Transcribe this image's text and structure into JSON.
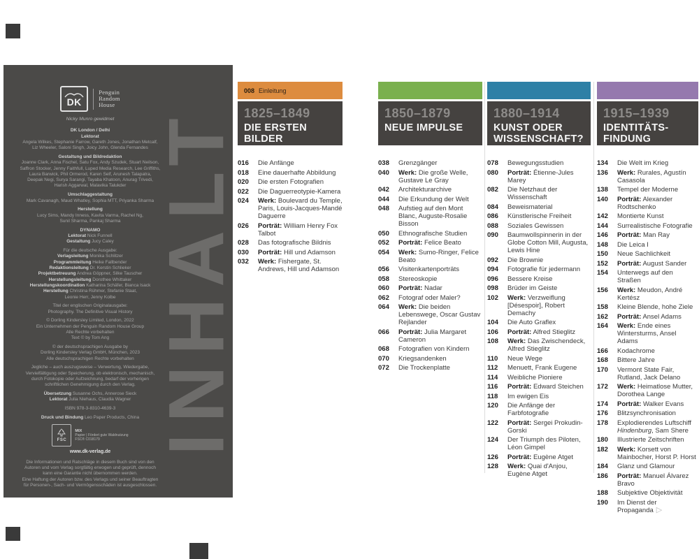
{
  "left_page": {
    "inhalt": "INHALT",
    "dk_logo": "DK",
    "publisher": [
      "Penguin",
      "Random",
      "House"
    ],
    "dedication": "Nicky Munro gewidmet",
    "fsc": {
      "label": "FSC",
      "mix": "MIX",
      "desc": "Papier | Fördert gute Waldnutzung",
      "code": "FSC® C018179"
    },
    "website": "www.dk-verlag.de",
    "blocks": [
      {
        "lines": [
          [
            {
              "b": "DK London / Delhi"
            }
          ],
          [
            {
              "b": "Lektorat"
            }
          ],
          [
            {
              "t": "Angela Wilkes, Stephanie Farrow, Gareth Jones, Jonathan Metcalf,"
            }
          ],
          [
            {
              "t": "Liz Wheeler, Saloni Singh, Joicy John, Glenda Fernandes"
            }
          ]
        ]
      },
      {
        "lines": [
          [
            {
              "b": "Gestaltung und Bildredaktion"
            }
          ],
          [
            {
              "t": "Joanne Clark, Anna Fischel, Satu Fox, Andy Szudek, Stuart Neilson,"
            }
          ],
          [
            {
              "t": "Saffron Stocker, Jenny Faithfull, Luped Media Research, Lee Griffiths,"
            }
          ],
          [
            {
              "t": "Laura Barwick, Phil Ormerod, Karen Self, Arunesh Talapatra,"
            }
          ],
          [
            {
              "t": "Deepak Negi, Surya Sarangi, Tayaba Khatoon, Anurag Trivedi,"
            }
          ],
          [
            {
              "t": "Harish Aggarwal, Malavika Talukder"
            }
          ]
        ]
      },
      {
        "lines": [
          [
            {
              "b": "Umschlaggestaltung"
            }
          ],
          [
            {
              "t": "Mark Cavanagh, Maud Whatley, Sophia MTT, Priyanka Sharma"
            }
          ]
        ]
      },
      {
        "lines": [
          [
            {
              "b": "Herstellung"
            }
          ],
          [
            {
              "t": "Lucy Sims, Mandy Inness, Kavita Varma, Rachel Ng,"
            }
          ],
          [
            {
              "t": "Sunil Sharma, Pankaj Sharma"
            }
          ]
        ]
      },
      {
        "lines": [
          [
            {
              "b": "DYNAMO"
            }
          ],
          [
            {
              "b": "Lektorat"
            },
            {
              "t": " Nick Funnell"
            }
          ],
          [
            {
              "b": "Gestaltung"
            },
            {
              "t": " Jucy Caley"
            }
          ]
        ]
      },
      {
        "lines": [
          [
            {
              "t": "Für die deutsche Ausgabe:"
            }
          ],
          [
            {
              "b": "Verlagsleitung"
            },
            {
              "t": " Monika Schlitzer"
            }
          ],
          [
            {
              "b": "Programmleitung"
            },
            {
              "t": " Heike Fallbender"
            }
          ],
          [
            {
              "b": "Redaktionsleitung"
            },
            {
              "t": " Dr. Kerstin Schlieker"
            }
          ],
          [
            {
              "b": "Projektbetreuung"
            },
            {
              "t": " Andrea Göppner, Silke Tauscher"
            }
          ],
          [
            {
              "b": "Herstellungsleitung"
            },
            {
              "t": " Dorothee Whittaker"
            }
          ],
          [
            {
              "b": "Herstellungskoordination"
            },
            {
              "t": " Katharina Schäfer, Bianca Isack"
            }
          ],
          [
            {
              "b": "Herstellung"
            },
            {
              "t": " Christina Rühmer, Stefanie Staat,"
            }
          ],
          [
            {
              "t": "Leonie Herr, Jenny Kolbe"
            }
          ]
        ]
      },
      {
        "lines": [
          [
            {
              "t": "Titel der englischen Originalausgabe:"
            }
          ],
          [
            {
              "t": "Photography. The Definitive Visual History"
            }
          ]
        ]
      },
      {
        "lines": [
          [
            {
              "t": "© Dorling Kindersley Limited, London, 2022"
            }
          ],
          [
            {
              "t": "Ein Unternehmen der Penguin Random House Group"
            }
          ],
          [
            {
              "t": "Alle Rechte vorbehalten"
            }
          ],
          [
            {
              "t": "Text © by Tom Ang"
            }
          ]
        ]
      },
      {
        "lines": [
          [
            {
              "t": "© der deutschsprachigen Ausgabe by"
            }
          ],
          [
            {
              "t": "Dorling Kindersley Verlag GmbH, München, 2023"
            }
          ],
          [
            {
              "t": "Alle deutschsprachigen Rechte vorbehalten"
            }
          ]
        ]
      },
      {
        "lines": [
          [
            {
              "t": "Jegliche – auch auszugsweise – Verwertung, Wiedergabe,"
            }
          ],
          [
            {
              "t": "Vervielfältigung oder Speicherung, ob elektronisch, mechanisch,"
            }
          ],
          [
            {
              "t": "durch Fotokopie oder Aufzeichnung, bedarf der vorherigen"
            }
          ],
          [
            {
              "t": "schriftlichen Genehmigung durch den Verlag."
            }
          ]
        ]
      },
      {
        "lines": [
          [
            {
              "b": "Übersetzung"
            },
            {
              "t": " Susanne Ochs, Annerose Sieck"
            }
          ],
          [
            {
              "b": "Lektorat"
            },
            {
              "t": " Julia Niehaus, Claudia Wagner"
            }
          ]
        ]
      },
      {
        "lines": [
          [
            {
              "t": "ISBN 978-3-8310-4639-3"
            }
          ]
        ]
      },
      {
        "lines": [
          [
            {
              "b": "Druck und Bindung"
            },
            {
              "t": " Leo Paper Products, China"
            }
          ]
        ]
      },
      {
        "type": "fsc"
      },
      {
        "type": "website"
      },
      {
        "lines": [
          [
            {
              "t": "Die Informationen und Ratschläge in diesem Buch sind von den"
            }
          ],
          [
            {
              "t": "Autoren und vom Verlag sorgfältig erwogen und geprüft, dennoch"
            }
          ],
          [
            {
              "t": "kann eine Garantie nicht übernommen werden."
            }
          ],
          [
            {
              "t": "Eine Haftung der Autoren bzw. des Verlags und seiner Beauftragten"
            }
          ],
          [
            {
              "t": "für Personen-, Sach- und Vermögensschäden ist ausgeschlossen."
            }
          ]
        ]
      }
    ]
  },
  "columns": [
    {
      "color": "#dd8c3f",
      "tab": {
        "number": "008",
        "label": "Einleitung"
      },
      "years": "1825–1849",
      "title_lines": [
        "DIE ERSTEN",
        "BILDER"
      ],
      "entries": [
        {
          "p": "016",
          "t": "Die Anfänge"
        },
        {
          "p": "018",
          "t": "Eine dauerhafte Abbildung"
        },
        {
          "p": "020",
          "t": "Die ersten Fotografien"
        },
        {
          "p": "022",
          "t": "Die Daguerreotypie-Kamera"
        },
        {
          "p": "024",
          "b": "Werk:",
          "t": "Boulevard du Temple, Paris, Louis-Jacques-Mandé Daguerre"
        },
        {
          "p": "026",
          "b": "Porträt:",
          "t": "William Henry Fox Talbot"
        },
        {
          "p": "028",
          "t": "Das fotografische Bildnis"
        },
        {
          "p": "030",
          "b": "Porträt:",
          "t": "Hill und Adamson"
        },
        {
          "p": "032",
          "b": "Werk:",
          "t": "Fishergate, St. Andrews, Hill und Adamson"
        }
      ]
    },
    {
      "color": "#7ab04e",
      "tab": null,
      "years": "1850–1879",
      "title_lines": [
        "NEUE IMPULSE"
      ],
      "entries": [
        {
          "p": "038",
          "t": "Grenzgänger"
        },
        {
          "p": "040",
          "b": "Werk:",
          "t": "Die große Welle, Gustave Le Gray"
        },
        {
          "p": "042",
          "t": "Architekturarchive"
        },
        {
          "p": "044",
          "t": "Die Erkundung der Welt"
        },
        {
          "p": "048",
          "t": "Aufstieg auf den Mont Blanc, Auguste-Rosalie Bisson"
        },
        {
          "p": "050",
          "t": "Ethnografische Studien"
        },
        {
          "p": "052",
          "b": "Porträt:",
          "t": "Felice Beato"
        },
        {
          "p": "054",
          "b": "Werk:",
          "t": "Sumo-Ringer, Felice Beato"
        },
        {
          "p": "056",
          "t": "Visitenkartenporträts"
        },
        {
          "p": "058",
          "t": "Stereoskopie"
        },
        {
          "p": "060",
          "b": "Porträt:",
          "t": "Nadar"
        },
        {
          "p": "062",
          "t": "Fotograf oder Maler?"
        },
        {
          "p": "064",
          "b": "Werk:",
          "t": "Die beiden Lebenswege, Oscar Gustav Rejlander"
        },
        {
          "p": "066",
          "b": "Porträt:",
          "t": "Julia Margaret Cameron"
        },
        {
          "p": "068",
          "t": "Fotografien von Kindern"
        },
        {
          "p": "070",
          "t": "Kriegsandenken"
        },
        {
          "p": "072",
          "t": "Die Trockenplatte"
        }
      ]
    },
    {
      "color": "#2e80a6",
      "tab": null,
      "years": "1880–1914",
      "title_lines": [
        "KUNST ODER",
        "WISSENSCHAFT?"
      ],
      "entries": [
        {
          "p": "078",
          "t": "Bewegungsstudien"
        },
        {
          "p": "080",
          "b": "Porträt:",
          "t": "Étienne-Jules Marey"
        },
        {
          "p": "082",
          "t": "Die Netzhaut der Wissenschaft"
        },
        {
          "p": "084",
          "t": "Beweismaterial"
        },
        {
          "p": "086",
          "t": "Künstlerische Freiheit"
        },
        {
          "p": "088",
          "t": "Soziales Gewissen"
        },
        {
          "p": "090",
          "t": "Baumwollspinnerin in der Globe Cotton Mill, Augusta, Lewis Hine"
        },
        {
          "p": "092",
          "t": "Die Brownie"
        },
        {
          "p": "094",
          "t": "Fotografie für jedermann"
        },
        {
          "p": "096",
          "t": "Bessere Kreise"
        },
        {
          "p": "098",
          "t": "Brüder im Geiste"
        },
        {
          "p": "102",
          "b": "Werk:",
          "t": "Verzweiflung [Désespoir], Robert Demachy"
        },
        {
          "p": "104",
          "t": "Die Auto Graflex"
        },
        {
          "p": "106",
          "b": "Porträt:",
          "t": "Alfred Stieglitz"
        },
        {
          "p": "108",
          "b": "Werk:",
          "t": "Das Zwischendeck, Alfred Stieglitz"
        },
        {
          "p": "110",
          "t": "Neue Wege"
        },
        {
          "p": "112",
          "t": "Menuett, Frank Eugene"
        },
        {
          "p": "114",
          "t": "Weibliche Pioniere"
        },
        {
          "p": "116",
          "b": "Porträt:",
          "t": "Edward Steichen"
        },
        {
          "p": "118",
          "t": "Im ewigen Eis"
        },
        {
          "p": "120",
          "t": "Die Anfänge der Farbfotografie"
        },
        {
          "p": "122",
          "b": "Porträt:",
          "t": "Sergei Prokudin-Gorski"
        },
        {
          "p": "124",
          "t": "Der Triumph des Piloten, Léon Gimpel"
        },
        {
          "p": "126",
          "b": "Porträt:",
          "t": "Eugène Atget"
        },
        {
          "p": "128",
          "b": "Werk:",
          "t": "Quai d'Anjou, Eugène Atget"
        }
      ]
    },
    {
      "color": "#9579ae",
      "tab": null,
      "years": "1915–1939",
      "title_lines": [
        "IDENTITÄTS-",
        "FINDUNG"
      ],
      "entries": [
        {
          "p": "134",
          "t": "Die Welt im Krieg"
        },
        {
          "p": "136",
          "b": "Werk:",
          "t": "Rurales, Agustín Casasola"
        },
        {
          "p": "138",
          "t": "Tempel der Moderne"
        },
        {
          "p": "140",
          "b": "Porträt:",
          "t": "Alexander Rodtschenko"
        },
        {
          "p": "142",
          "t": "Montierte Kunst"
        },
        {
          "p": "144",
          "t": "Surrealistische Fotografie"
        },
        {
          "p": "146",
          "b": "Porträt:",
          "t": "Man Ray"
        },
        {
          "p": "148",
          "t": "Die Leica I"
        },
        {
          "p": "150",
          "t": "Neue Sachlichkeit"
        },
        {
          "p": "152",
          "b": "Porträt:",
          "t": "August Sander"
        },
        {
          "p": "154",
          "t": "Unterwegs auf den Straßen"
        },
        {
          "p": "156",
          "b": "Werk:",
          "t": "Meudon, André Kertész"
        },
        {
          "p": "158",
          "t": "Kleine Blende, hohe Ziele"
        },
        {
          "p": "162",
          "b": "Porträt:",
          "t": "Ansel Adams"
        },
        {
          "p": "164",
          "b": "Werk:",
          "t": "Ende eines Wintersturms, Ansel Adams"
        },
        {
          "p": "166",
          "t": "Kodachrome"
        },
        {
          "p": "168",
          "t": "Bittere Jahre"
        },
        {
          "p": "170",
          "t": "Vermont State Fair, Rutland, Jack Delano"
        },
        {
          "p": "172",
          "b": "Werk:",
          "t": "Heimatlose Mutter, Dorothea Lange"
        },
        {
          "p": "174",
          "b": "Porträt:",
          "t": "Walker Evans"
        },
        {
          "p": "176",
          "t": "Blitzsynchronisation"
        },
        {
          "p": "178",
          "t": "Explodierendes Luftschiff ",
          "i": "Hindenburg",
          "t2": ", Sam Shere"
        },
        {
          "p": "180",
          "t": "Illustrierte Zeitschriften"
        },
        {
          "p": "182",
          "b": "Werk:",
          "t": "Korsett von Mainbocher, Horst P. Horst"
        },
        {
          "p": "184",
          "t": "Glanz und Glamour"
        },
        {
          "p": "186",
          "b": "Porträt:",
          "t": "Manuel Álvarez Bravo"
        },
        {
          "p": "188",
          "t": "Subjektive Objektivität"
        },
        {
          "p": "190",
          "t": "Im Dienst der Propaganda",
          "marker": "▷"
        }
      ]
    }
  ]
}
